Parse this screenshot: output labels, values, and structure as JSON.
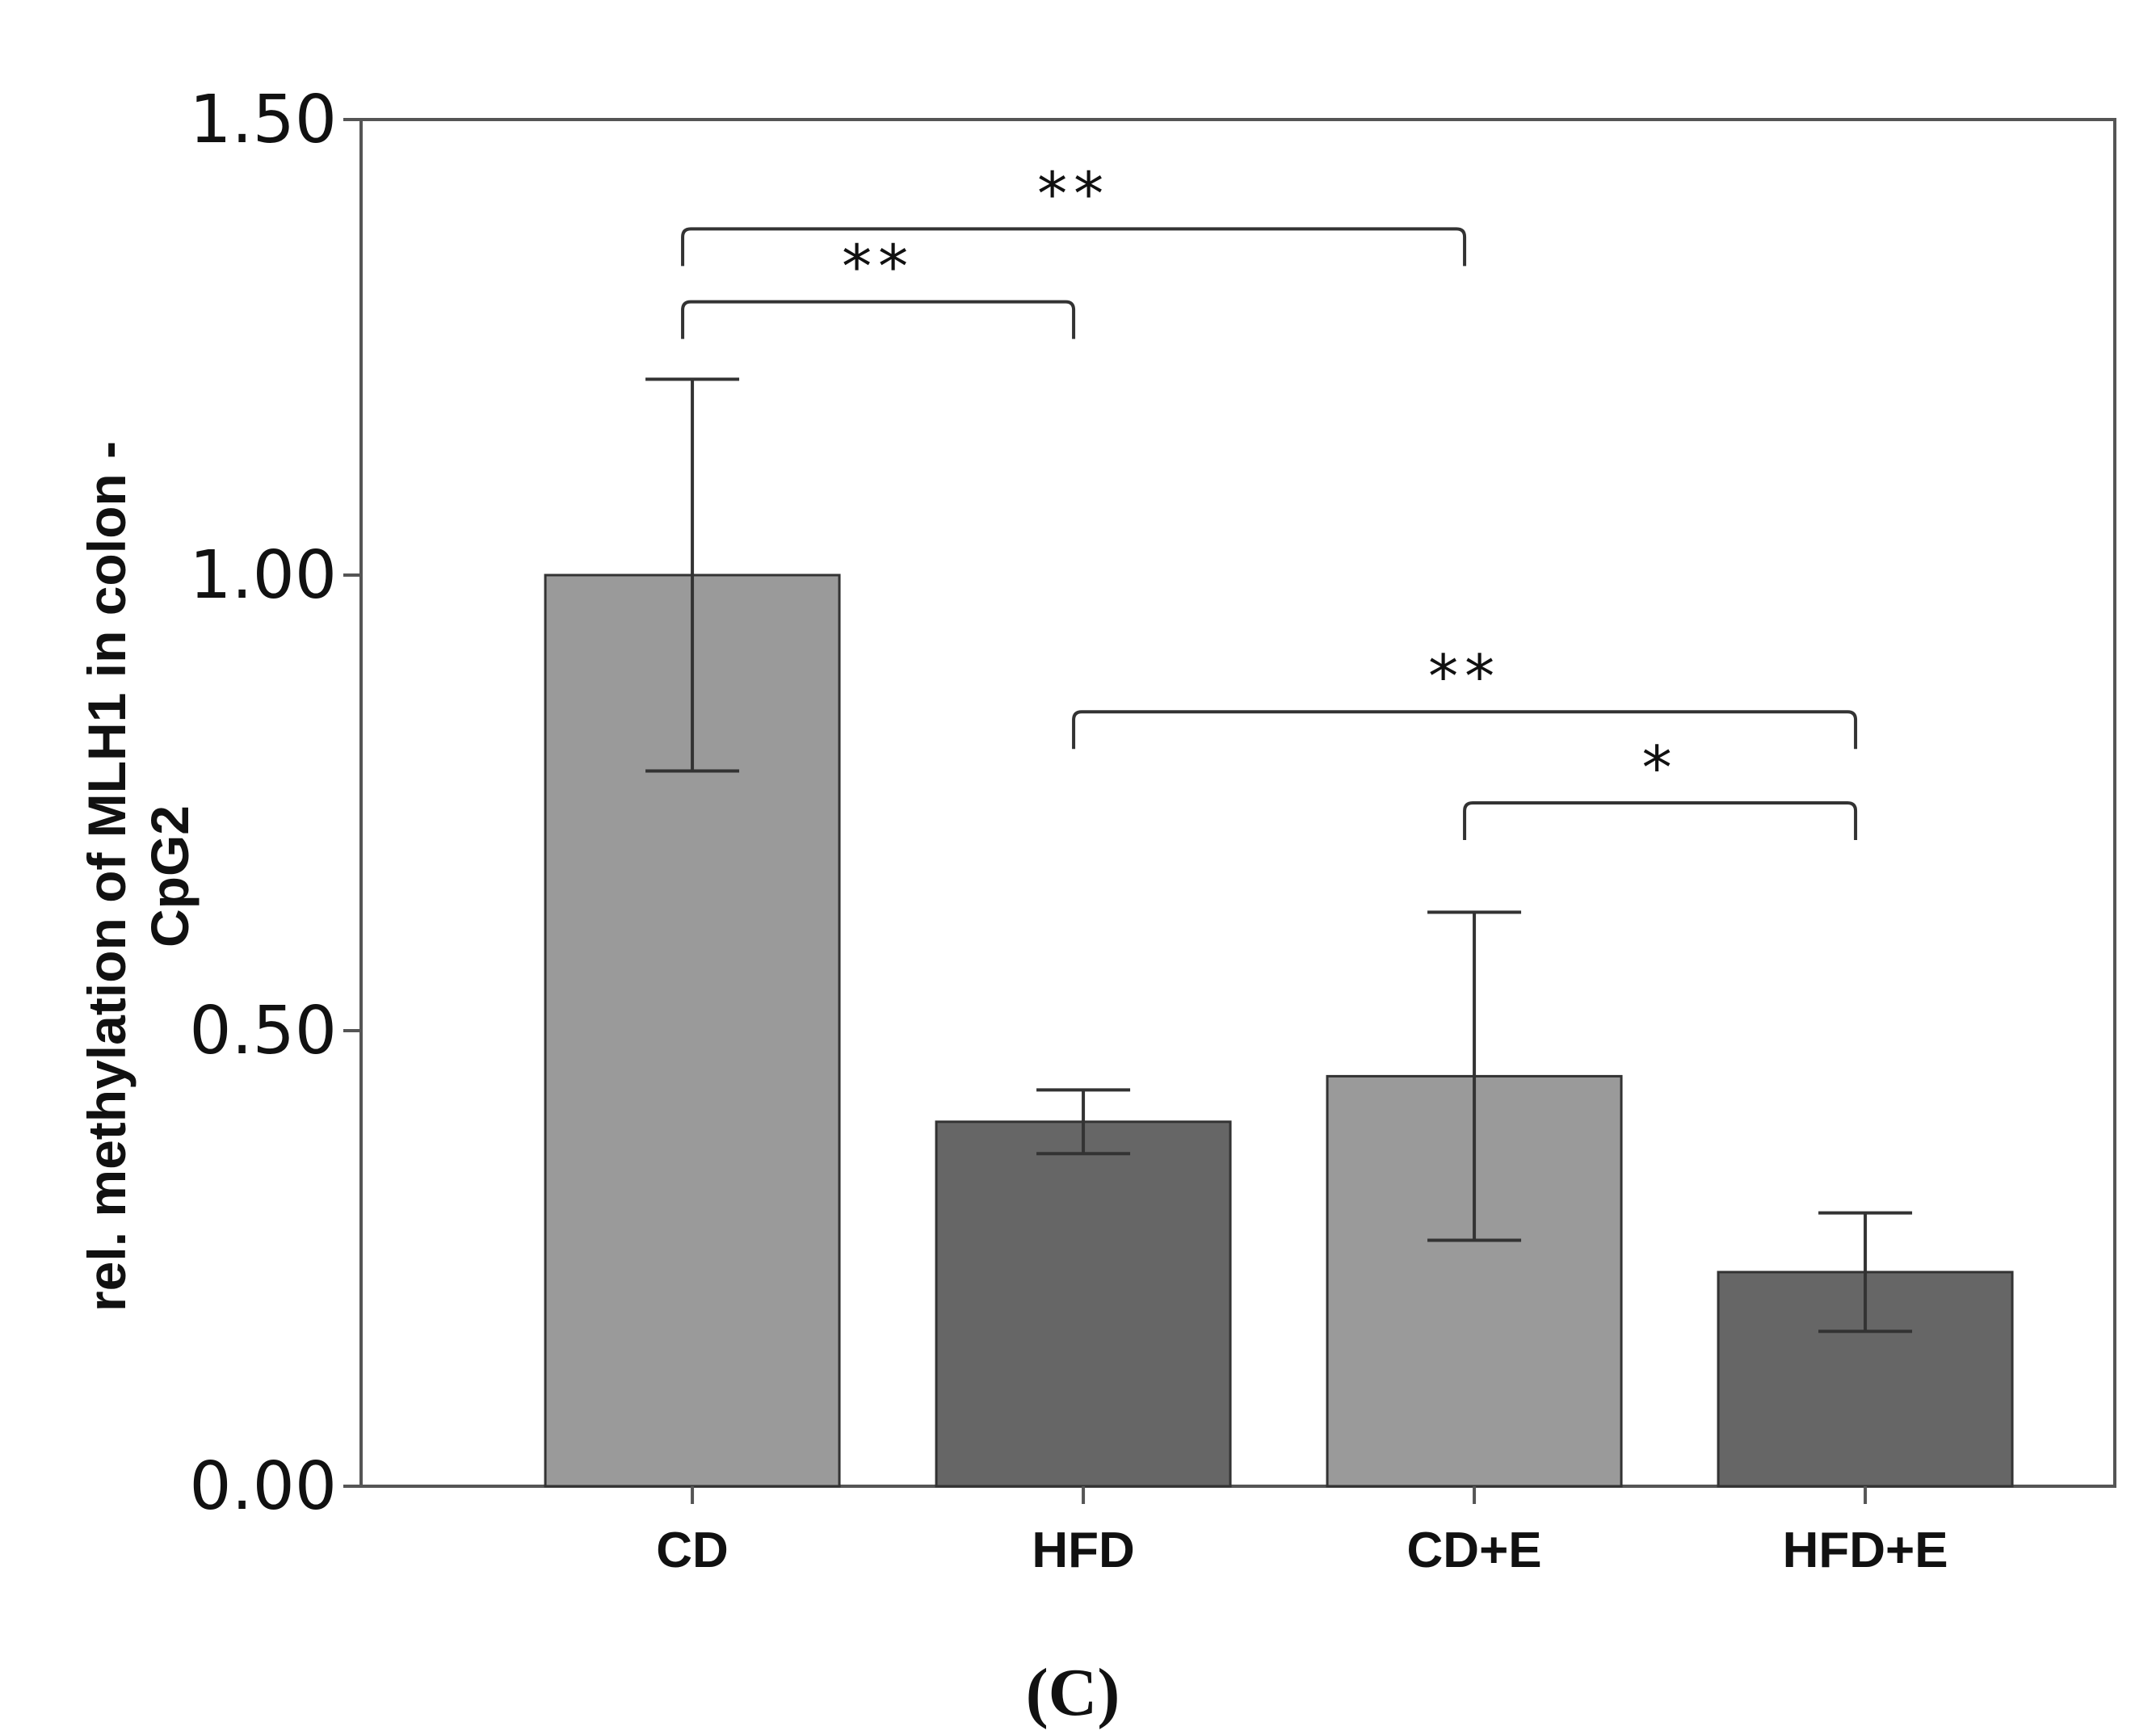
{
  "chart_data": {
    "type": "bar",
    "title": "",
    "xlabel": "",
    "ylabel_line1": "rel. methylation of MLH1 in colon -",
    "ylabel_line2": "CpG2",
    "ylim": [
      0,
      1.5
    ],
    "yticks": [
      "0.00",
      "0.50",
      "1.00",
      "1.50"
    ],
    "ytick_values": [
      0,
      0.5,
      1.0,
      1.5
    ],
    "categories": [
      "CD",
      "HFD",
      "CD+E",
      "HFD+E"
    ],
    "values": [
      1.0,
      0.4,
      0.45,
      0.235
    ],
    "error_low": [
      0.785,
      0.365,
      0.27,
      0.17
    ],
    "error_high": [
      1.215,
      0.435,
      0.63,
      0.3
    ],
    "bar_colors": [
      "#9a9a9a",
      "#666666",
      "#9a9a9a",
      "#666666"
    ],
    "significance": [
      {
        "from": 0,
        "to": 1,
        "label": "**",
        "y": 1.3
      },
      {
        "from": 0,
        "to": 2,
        "label": "**",
        "y": 1.38
      },
      {
        "from": 1,
        "to": 3,
        "label": "**",
        "y": 0.85
      },
      {
        "from": 2,
        "to": 3,
        "label": "*",
        "y": 0.75
      }
    ],
    "grid": false
  },
  "panel_label": "(C)"
}
